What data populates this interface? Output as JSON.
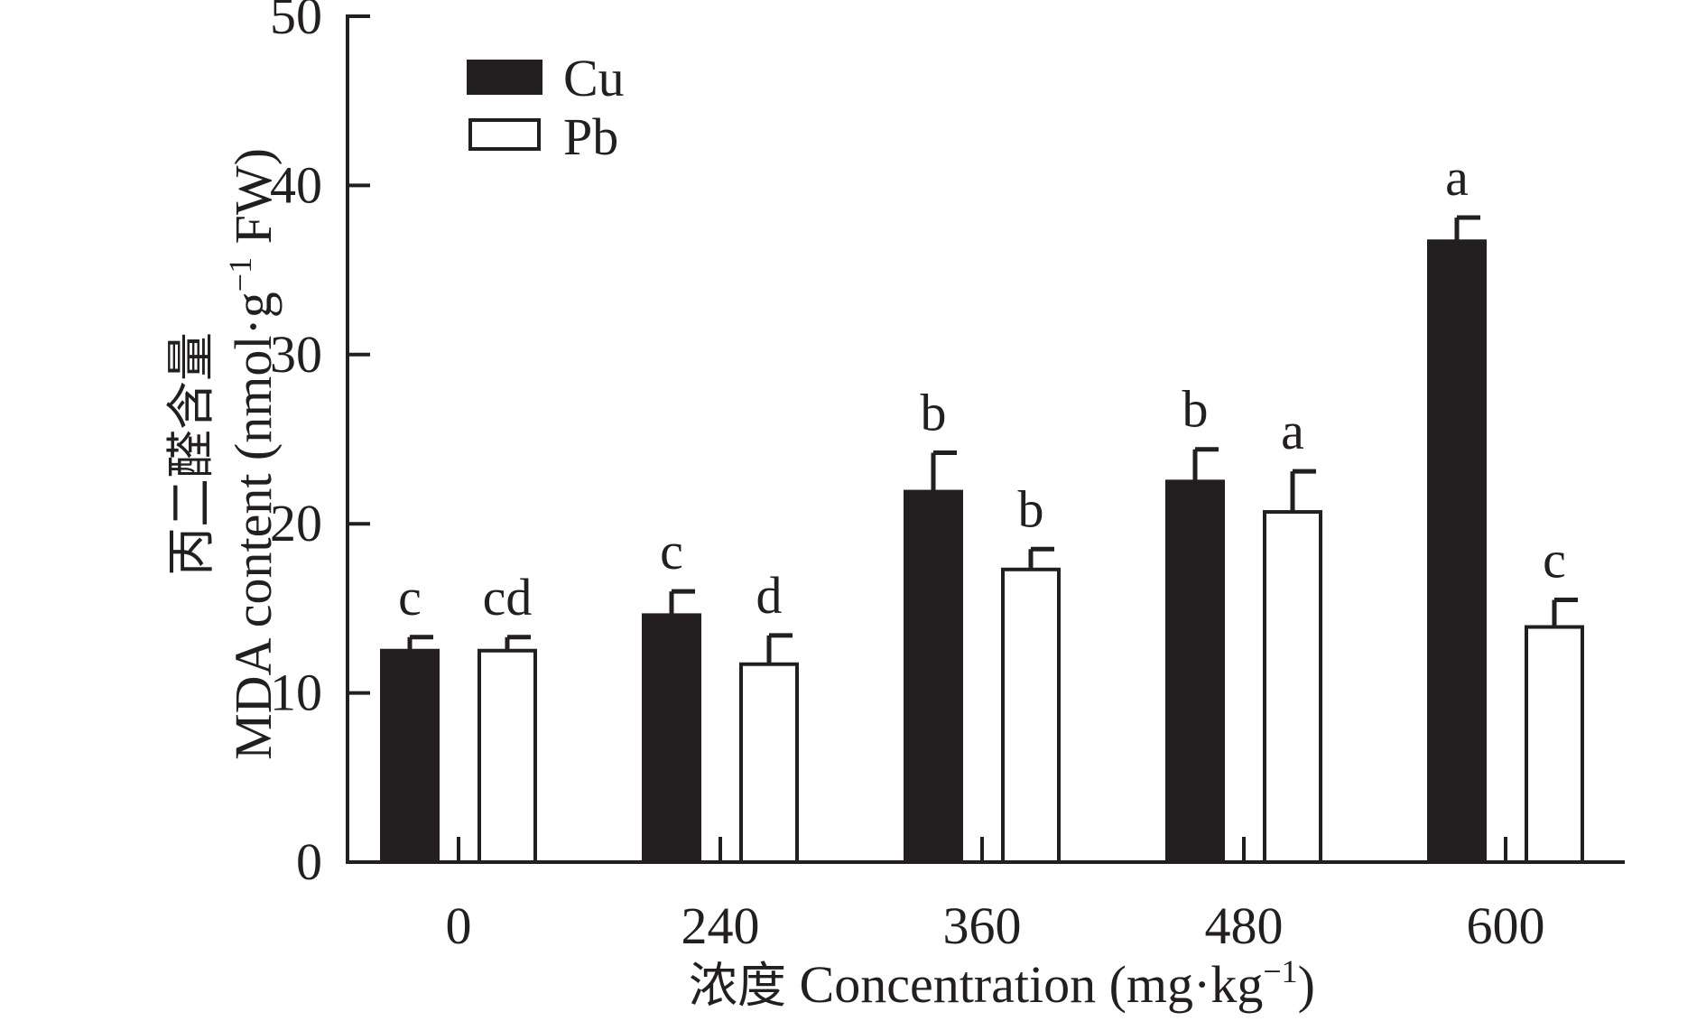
{
  "chart_data": {
    "type": "bar",
    "categories": [
      "0",
      "240",
      "360",
      "480",
      "600"
    ],
    "series": [
      {
        "name": "Cu",
        "color": "#231f20",
        "fill": "solid",
        "values": [
          12.5,
          14.6,
          21.9,
          22.5,
          36.7
        ],
        "errors": [
          0.8,
          1.4,
          2.3,
          1.9,
          1.4
        ],
        "letters": [
          "c",
          "c",
          "b",
          "b",
          "a"
        ]
      },
      {
        "name": "Pb",
        "color": "#ffffff",
        "fill": "open",
        "values": [
          12.5,
          11.7,
          17.3,
          20.7,
          13.9
        ],
        "errors": [
          0.8,
          1.7,
          1.2,
          2.4,
          1.6
        ],
        "letters": [
          "cd",
          "d",
          "b",
          "a",
          "c"
        ]
      }
    ],
    "ylim": [
      0,
      50
    ],
    "yticks": [
      "0",
      "10",
      "20",
      "30",
      "40",
      "50"
    ],
    "ylabel_cn": "丙二醛含量",
    "ylabel_main": "MDA content (nmol·g",
    "ylabel_sup": "−1",
    "ylabel_end": " FW)",
    "xlabel_cn": "浓度",
    "xlabel_main": " Concentration (mg·kg",
    "xlabel_sup": "−1",
    "xlabel_end": ")",
    "legend": {
      "position": "top-left",
      "entries": [
        "Cu",
        "Pb"
      ]
    },
    "grid": false
  }
}
